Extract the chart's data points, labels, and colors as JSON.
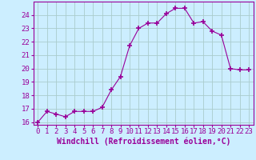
{
  "x": [
    0,
    1,
    2,
    3,
    4,
    5,
    6,
    7,
    8,
    9,
    10,
    11,
    12,
    13,
    14,
    15,
    16,
    17,
    18,
    19,
    20,
    21,
    22,
    23
  ],
  "y": [
    16.0,
    16.8,
    16.6,
    16.4,
    16.8,
    16.8,
    16.8,
    17.1,
    18.4,
    19.4,
    21.7,
    23.0,
    23.4,
    23.4,
    24.1,
    24.5,
    24.5,
    23.4,
    23.5,
    22.8,
    22.5,
    20.0,
    19.9,
    19.9
  ],
  "line_color": "#990099",
  "marker": "+",
  "marker_size": 4,
  "marker_lw": 1.2,
  "bg_color": "#cceeff",
  "grid_color": "#aacccc",
  "xlabel": "Windchill (Refroidissement éolien,°C)",
  "xlabel_fontsize": 7,
  "tick_fontsize": 6.5,
  "ylim": [
    15.8,
    25.0
  ],
  "xlim": [
    -0.5,
    23.5
  ],
  "yticks": [
    16,
    17,
    18,
    19,
    20,
    21,
    22,
    23,
    24
  ],
  "xticks": [
    0,
    1,
    2,
    3,
    4,
    5,
    6,
    7,
    8,
    9,
    10,
    11,
    12,
    13,
    14,
    15,
    16,
    17,
    18,
    19,
    20,
    21,
    22,
    23
  ]
}
